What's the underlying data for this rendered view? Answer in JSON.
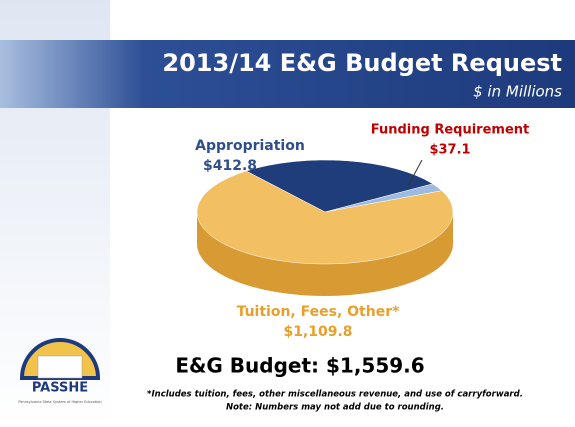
{
  "chart_data": {
    "type": "pie",
    "title": "2013/14 E&G Budget Request",
    "subtitle": "$ in Millions",
    "categories": [
      "Appropriation",
      "Funding Requirement",
      "Tuition, Fees, Other*"
    ],
    "values": [
      412.8,
      37.1,
      1109.8
    ],
    "value_labels": [
      "$412.8",
      "$37.1",
      "$1,109.8"
    ],
    "colors": [
      "#1f3d7a",
      "#9dbbe0",
      "#f2c062"
    ],
    "annotations": [
      "E&G Budget: $1,559.6"
    ],
    "footnotes": [
      "*Includes tuition, fees, other miscellaneous revenue, and use of carryforward.",
      "Note: Numbers may not add due to rounding."
    ]
  },
  "logo": {
    "name": "PASSHE",
    "subtitle": "Pennsylvania State System of Higher Education"
  }
}
